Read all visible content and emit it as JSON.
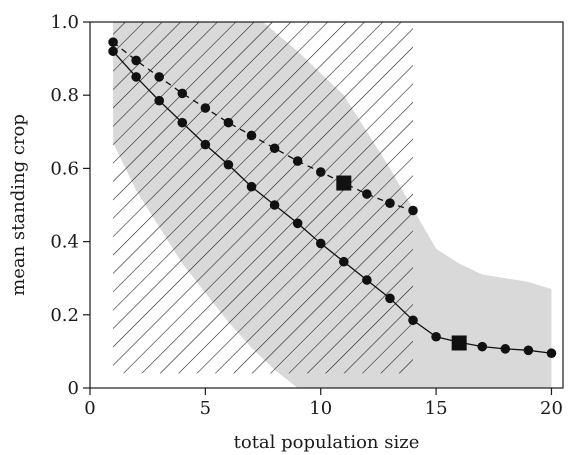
{
  "chart_data": {
    "type": "line",
    "title": "",
    "xlabel": "total population size",
    "ylabel": "mean standing crop",
    "xlim": [
      0,
      20.5
    ],
    "ylim": [
      0,
      1.0
    ],
    "x_ticks": [
      0,
      5,
      10,
      15,
      20
    ],
    "x_tick_labels": [
      "0",
      "5",
      "10",
      "15",
      "20"
    ],
    "y_ticks": [
      0,
      0.2,
      0.4,
      0.6,
      0.8,
      1.0
    ],
    "y_tick_labels": [
      "0",
      "0.2",
      "0.4",
      "0.6",
      "0.8",
      "1.0"
    ],
    "grid": false,
    "legend": "none",
    "series": [
      {
        "style": "solid",
        "color": "#111111",
        "x": [
          1,
          2,
          3,
          4,
          5,
          6,
          7,
          8,
          9,
          10,
          11,
          12,
          13,
          14,
          15,
          16,
          17,
          18,
          19,
          20
        ],
        "y": [
          0.92,
          0.85,
          0.785,
          0.725,
          0.665,
          0.61,
          0.55,
          0.5,
          0.45,
          0.395,
          0.345,
          0.295,
          0.245,
          0.185,
          0.14,
          0.125,
          0.113,
          0.107,
          0.103,
          0.095
        ]
      },
      {
        "style": "dashed",
        "color": "#111111",
        "x": [
          1,
          2,
          3,
          4,
          5,
          6,
          7,
          8,
          9,
          10,
          11,
          12,
          13,
          14
        ],
        "y": [
          0.945,
          0.895,
          0.85,
          0.805,
          0.765,
          0.725,
          0.69,
          0.655,
          0.62,
          0.59,
          0.56,
          0.53,
          0.505,
          0.485
        ]
      }
    ],
    "highlight_markers": [
      {
        "shape": "square",
        "x": 11,
        "y": 0.56
      },
      {
        "shape": "square",
        "x": 16,
        "y": 0.123
      }
    ],
    "shaded_region": {
      "color": "#d9d9d9",
      "upper": [
        [
          1,
          1.0
        ],
        [
          7.5,
          1.0
        ],
        [
          9,
          0.92
        ],
        [
          11,
          0.8
        ],
        [
          13,
          0.6
        ],
        [
          14,
          0.49
        ],
        [
          15,
          0.38
        ],
        [
          16,
          0.34
        ],
        [
          17,
          0.31
        ],
        [
          18,
          0.3
        ],
        [
          19,
          0.29
        ],
        [
          20,
          0.27
        ]
      ],
      "lower": [
        [
          1,
          0.67
        ],
        [
          2,
          0.54
        ],
        [
          3,
          0.44
        ],
        [
          4,
          0.34
        ],
        [
          5,
          0.26
        ],
        [
          6,
          0.18
        ],
        [
          7,
          0.11
        ],
        [
          8,
          0.05
        ],
        [
          9,
          0.0
        ],
        [
          20,
          0.0
        ]
      ]
    },
    "hatched_region": {
      "color": "#111111",
      "x_range": [
        1,
        14
      ],
      "y_range": [
        0.04,
        1.0
      ],
      "pattern": "diagonal"
    }
  }
}
